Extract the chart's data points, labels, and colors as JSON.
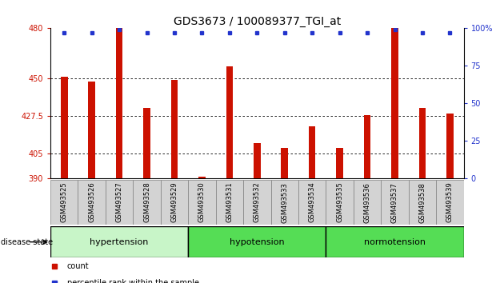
{
  "title": "GDS3673 / 100089377_TGI_at",
  "samples": [
    "GSM493525",
    "GSM493526",
    "GSM493527",
    "GSM493528",
    "GSM493529",
    "GSM493530",
    "GSM493531",
    "GSM493532",
    "GSM493533",
    "GSM493534",
    "GSM493535",
    "GSM493536",
    "GSM493537",
    "GSM493538",
    "GSM493539"
  ],
  "counts": [
    451,
    448,
    480,
    432,
    449,
    391,
    457,
    411,
    408,
    421,
    408,
    428,
    480,
    432,
    429
  ],
  "percentiles": [
    97,
    97,
    99,
    97,
    97,
    97,
    97,
    97,
    97,
    97,
    97,
    97,
    99,
    97,
    97
  ],
  "group_configs": [
    {
      "name": "hypertension",
      "start": 0,
      "end": 5
    },
    {
      "name": "hypotension",
      "start": 5,
      "end": 10
    },
    {
      "name": "normotension",
      "start": 10,
      "end": 15
    }
  ],
  "ymin": 390,
  "ymax": 480,
  "yticks": [
    390,
    405,
    427.5,
    450,
    480
  ],
  "right_yticks": [
    0,
    25,
    50,
    75,
    100
  ],
  "bar_color": "#cc1100",
  "dot_color": "#2233cc",
  "bar_width": 0.25,
  "group_color_light": "#b3f0b3",
  "group_color_dark": "#55cc55",
  "label_box_color": "#d3d3d3",
  "title_fontsize": 10,
  "axis_fontsize": 8,
  "tick_fontsize": 7,
  "sample_fontsize": 6,
  "group_fontsize": 8,
  "legend_fontsize": 7,
  "grid_yticks": [
    405,
    427.5,
    450
  ]
}
